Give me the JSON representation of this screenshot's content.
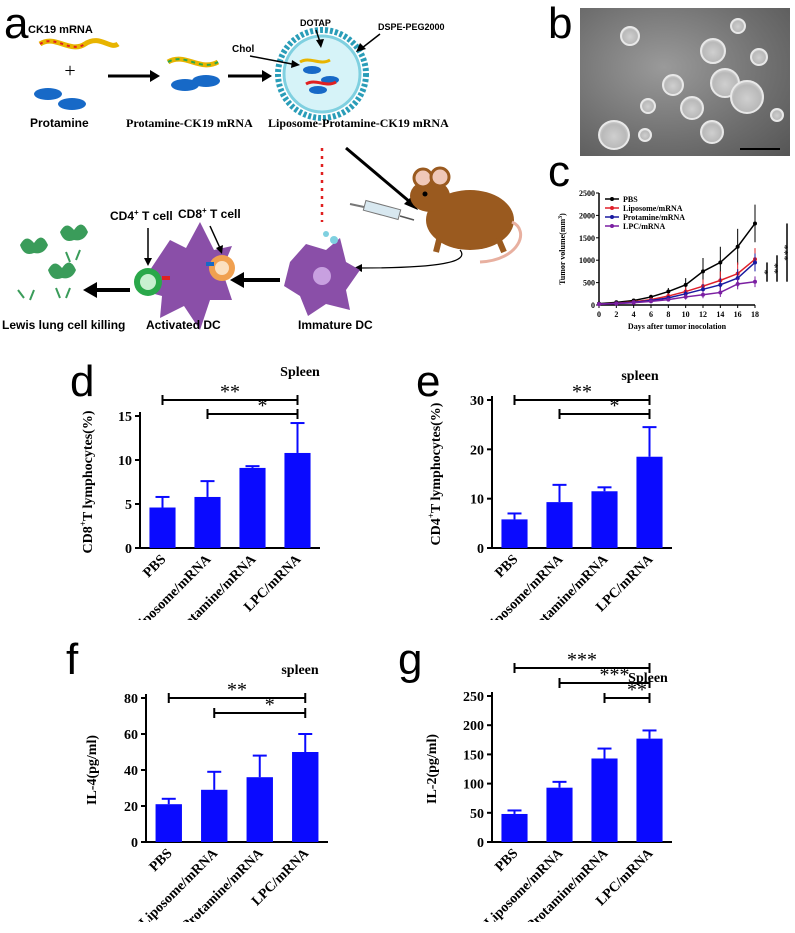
{
  "figure": {
    "panel_letters": [
      "a",
      "b",
      "c",
      "d",
      "e",
      "f",
      "g"
    ]
  },
  "schematic": {
    "ck19_mrna": "CK19 mRNA",
    "plus": "+",
    "protamine": "Protamine",
    "protamine_ck19": "Protamine-CK19 mRNA",
    "liposome_protamine_ck19": "Liposome-Protamine-CK19 mRNA",
    "dotap": "DOTAP",
    "dspe_peg": "DSPE-PEG2000",
    "chol": "Chol",
    "cd4_cell_prefix": "CD4",
    "cd4_cell_suffix": " T cell",
    "cd8_cell_prefix": "CD8",
    "cd8_cell_suffix": " T cell",
    "plus_sup": "+",
    "lewis": "Lewis lung cell killing",
    "activated_dc": "Activated DC",
    "immature_dc": "Immature DC",
    "colors": {
      "mrna": "#e8b400",
      "protamine": "#1769c7",
      "liposome": "#7fd0e0",
      "dc": "#8a4fa8",
      "tumor": "#3a9c5a"
    }
  },
  "chart_data": [
    {
      "panel": "c",
      "type": "line",
      "xlabel": "Days after tumor inocolation",
      "ylabel_text": "Tumor volume(mm",
      "ylabel_sup": "3",
      "ylabel_close": ")",
      "x": [
        0,
        2,
        4,
        6,
        8,
        10,
        12,
        14,
        16,
        18
      ],
      "xticks": [
        "0",
        "2",
        "4",
        "6",
        "8",
        "10",
        "12",
        "14",
        "16",
        "18"
      ],
      "yticks": [
        "0",
        "500",
        "1000",
        "1500",
        "2000",
        "2500"
      ],
      "ylim": [
        0,
        2500
      ],
      "xlim": [
        0,
        18
      ],
      "series": [
        {
          "name": "PBS",
          "color": "#000000",
          "values": [
            30,
            60,
            100,
            180,
            300,
            450,
            750,
            950,
            1300,
            1820
          ],
          "err": [
            10,
            20,
            30,
            50,
            80,
            150,
            300,
            350,
            400,
            420
          ]
        },
        {
          "name": "Liposome/mRNA",
          "color": "#e0202a",
          "values": [
            20,
            40,
            70,
            120,
            200,
            300,
            420,
            550,
            700,
            1020
          ],
          "err": [
            5,
            10,
            20,
            40,
            60,
            100,
            150,
            200,
            250,
            250
          ]
        },
        {
          "name": "Protamine/mRNA",
          "color": "#1a1aa0",
          "values": [
            20,
            35,
            60,
            100,
            160,
            250,
            350,
            450,
            600,
            950
          ],
          "err": [
            5,
            10,
            15,
            30,
            50,
            80,
            120,
            160,
            200,
            200
          ]
        },
        {
          "name": "LPC/mRNA",
          "color": "#7b1fa2",
          "values": [
            20,
            30,
            50,
            80,
            120,
            180,
            230,
            280,
            470,
            520
          ],
          "err": [
            5,
            10,
            15,
            25,
            40,
            60,
            80,
            100,
            120,
            120
          ]
        }
      ],
      "sig": [
        "***",
        "**",
        "*"
      ]
    },
    {
      "panel": "d",
      "type": "bar",
      "title": "Spleen",
      "ylabel_text": "CD8",
      "ylabel_sup": "+",
      "ylabel_rest": "T lymphocytes(%)",
      "categories": [
        "PBS",
        "Liposome/mRNA",
        "Protamine/mRNA",
        "LPC/mRNA"
      ],
      "values": [
        4.6,
        5.8,
        9.1,
        10.8
      ],
      "err": [
        1.2,
        1.8,
        0.2,
        3.4
      ],
      "ylim": [
        0,
        15
      ],
      "yticks": [
        "0",
        "5",
        "10",
        "15"
      ],
      "sig": [
        {
          "from": 0,
          "to": 3,
          "label": "**"
        },
        {
          "from": 1,
          "to": 3,
          "label": "*"
        }
      ],
      "bar_color": "#0a0aff"
    },
    {
      "panel": "e",
      "type": "bar",
      "title": "spleen",
      "ylabel_text": "CD4",
      "ylabel_sup": "+",
      "ylabel_rest": "T lymphocytes(%)",
      "categories": [
        "PBS",
        "Liposome/mRNA",
        "Protamine/mRNA",
        "LPC/mRNA"
      ],
      "values": [
        5.8,
        9.3,
        11.5,
        18.5
      ],
      "err": [
        1.2,
        3.5,
        0.8,
        6.0
      ],
      "ylim": [
        0,
        30
      ],
      "yticks": [
        "0",
        "10",
        "20",
        "30"
      ],
      "sig": [
        {
          "from": 0,
          "to": 3,
          "label": "**"
        },
        {
          "from": 1,
          "to": 3,
          "label": "*"
        }
      ],
      "bar_color": "#0a0aff"
    },
    {
      "panel": "f",
      "type": "bar",
      "title": "spleen",
      "ylabel_text": "IL-4(pg/ml)",
      "ylabel_sup": "",
      "ylabel_rest": "",
      "categories": [
        "PBS",
        "Liposome/mRNA",
        "Protamine/mRNA",
        "LPC/mRNA"
      ],
      "values": [
        21,
        29,
        36,
        50
      ],
      "err": [
        3,
        10,
        12,
        10
      ],
      "ylim": [
        0,
        80
      ],
      "yticks": [
        "0",
        "20",
        "40",
        "60",
        "80"
      ],
      "sig": [
        {
          "from": 0,
          "to": 3,
          "label": "**"
        },
        {
          "from": 1,
          "to": 3,
          "label": "*"
        }
      ],
      "bar_color": "#0a0aff"
    },
    {
      "panel": "g",
      "type": "bar",
      "title": "Spleen",
      "ylabel_text": "IL-2(pg/ml)",
      "ylabel_sup": "",
      "ylabel_rest": "",
      "categories": [
        "PBS",
        "Liposome/mRNA",
        "Protamine/mRNA",
        "LPC/mRNA"
      ],
      "values": [
        48,
        93,
        143,
        177
      ],
      "err": [
        6,
        10,
        17,
        14
      ],
      "ylim": [
        0,
        250
      ],
      "yticks": [
        "0",
        "50",
        "100",
        "150",
        "200",
        "250"
      ],
      "sig": [
        {
          "from": 0,
          "to": 3,
          "label": "***"
        },
        {
          "from": 1,
          "to": 3,
          "label": "***"
        },
        {
          "from": 2,
          "to": 3,
          "label": "**"
        }
      ],
      "bar_color": "#0a0aff"
    }
  ]
}
